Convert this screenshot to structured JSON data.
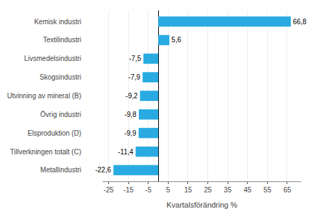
{
  "chart_data": {
    "type": "bar",
    "orientation": "horizontal",
    "categories": [
      "Metallindustri",
      "Tillverkningen totalt (C)",
      "Elsproduktion (D)",
      "Övrig industri",
      "Utvinning av mineral (B)",
      "Skogsindustri",
      "Livsmedelsindustri",
      "Textilindustri",
      "Kemisk industri"
    ],
    "values": [
      -22.6,
      -11.4,
      -9.9,
      -9.8,
      -9.2,
      -7.9,
      -7.5,
      5.6,
      66.8
    ],
    "value_labels": [
      "-22,6",
      "-11,4",
      "-9,9",
      "-9,8",
      "-9,2",
      "-7,9",
      "-7,5",
      "5,6",
      "66,8"
    ],
    "data_labels": true,
    "color": "#29abe2",
    "xlabel": "Kvartalsförändring %",
    "xlim": [
      -28,
      72
    ],
    "xticks": [
      -25,
      -15,
      -5,
      5,
      15,
      25,
      35,
      45,
      55,
      65
    ],
    "grid": true
  }
}
